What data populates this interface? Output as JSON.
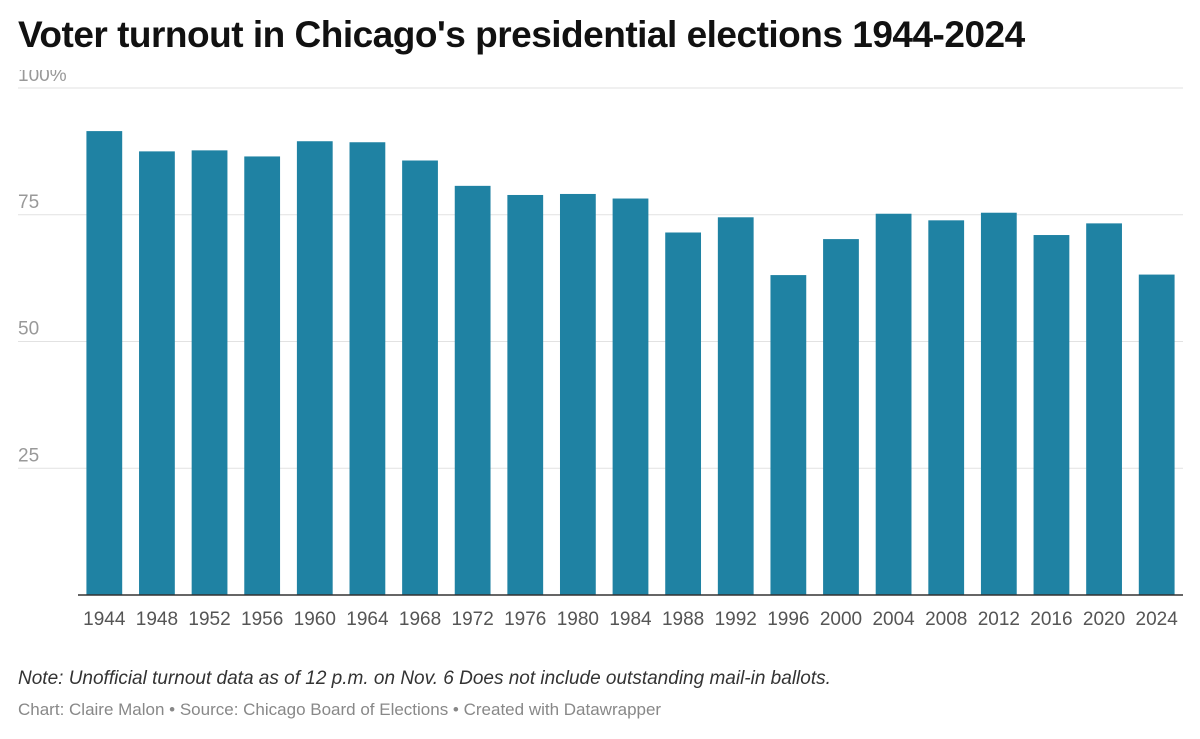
{
  "title": "Voter turnout in Chicago's presidential elections 1944-2024",
  "note": "Note: Unofficial turnout data as of 12 p.m. on Nov. 6 Does not include outstanding mail-in ballots.",
  "credits": "Chart: Claire Malon • Source: Chicago Board of Elections • Created with Datawrapper",
  "colors": {
    "bar": "#1f82a3",
    "grid": "#e2e2e2",
    "baseline": "#333333"
  },
  "chart_data": {
    "type": "bar",
    "categories": [
      "1944",
      "1948",
      "1952",
      "1956",
      "1960",
      "1964",
      "1968",
      "1972",
      "1976",
      "1980",
      "1984",
      "1988",
      "1992",
      "1996",
      "2000",
      "2004",
      "2008",
      "2012",
      "2016",
      "2020",
      "2024"
    ],
    "values": [
      91.5,
      87.5,
      87.7,
      86.5,
      89.5,
      89.3,
      85.7,
      80.7,
      78.9,
      79.1,
      78.2,
      71.5,
      74.5,
      63.1,
      70.2,
      75.2,
      73.9,
      75.4,
      71.0,
      73.3,
      63.2
    ],
    "ylim": [
      0,
      100
    ],
    "yticks": [
      {
        "value": 100,
        "label": "100%"
      },
      {
        "value": 75,
        "label": "75"
      },
      {
        "value": 50,
        "label": "50"
      },
      {
        "value": 25,
        "label": "25"
      }
    ],
    "title": "Voter turnout in Chicago's presidential elections 1944-2024",
    "xlabel": "",
    "ylabel": "",
    "grid": true
  }
}
